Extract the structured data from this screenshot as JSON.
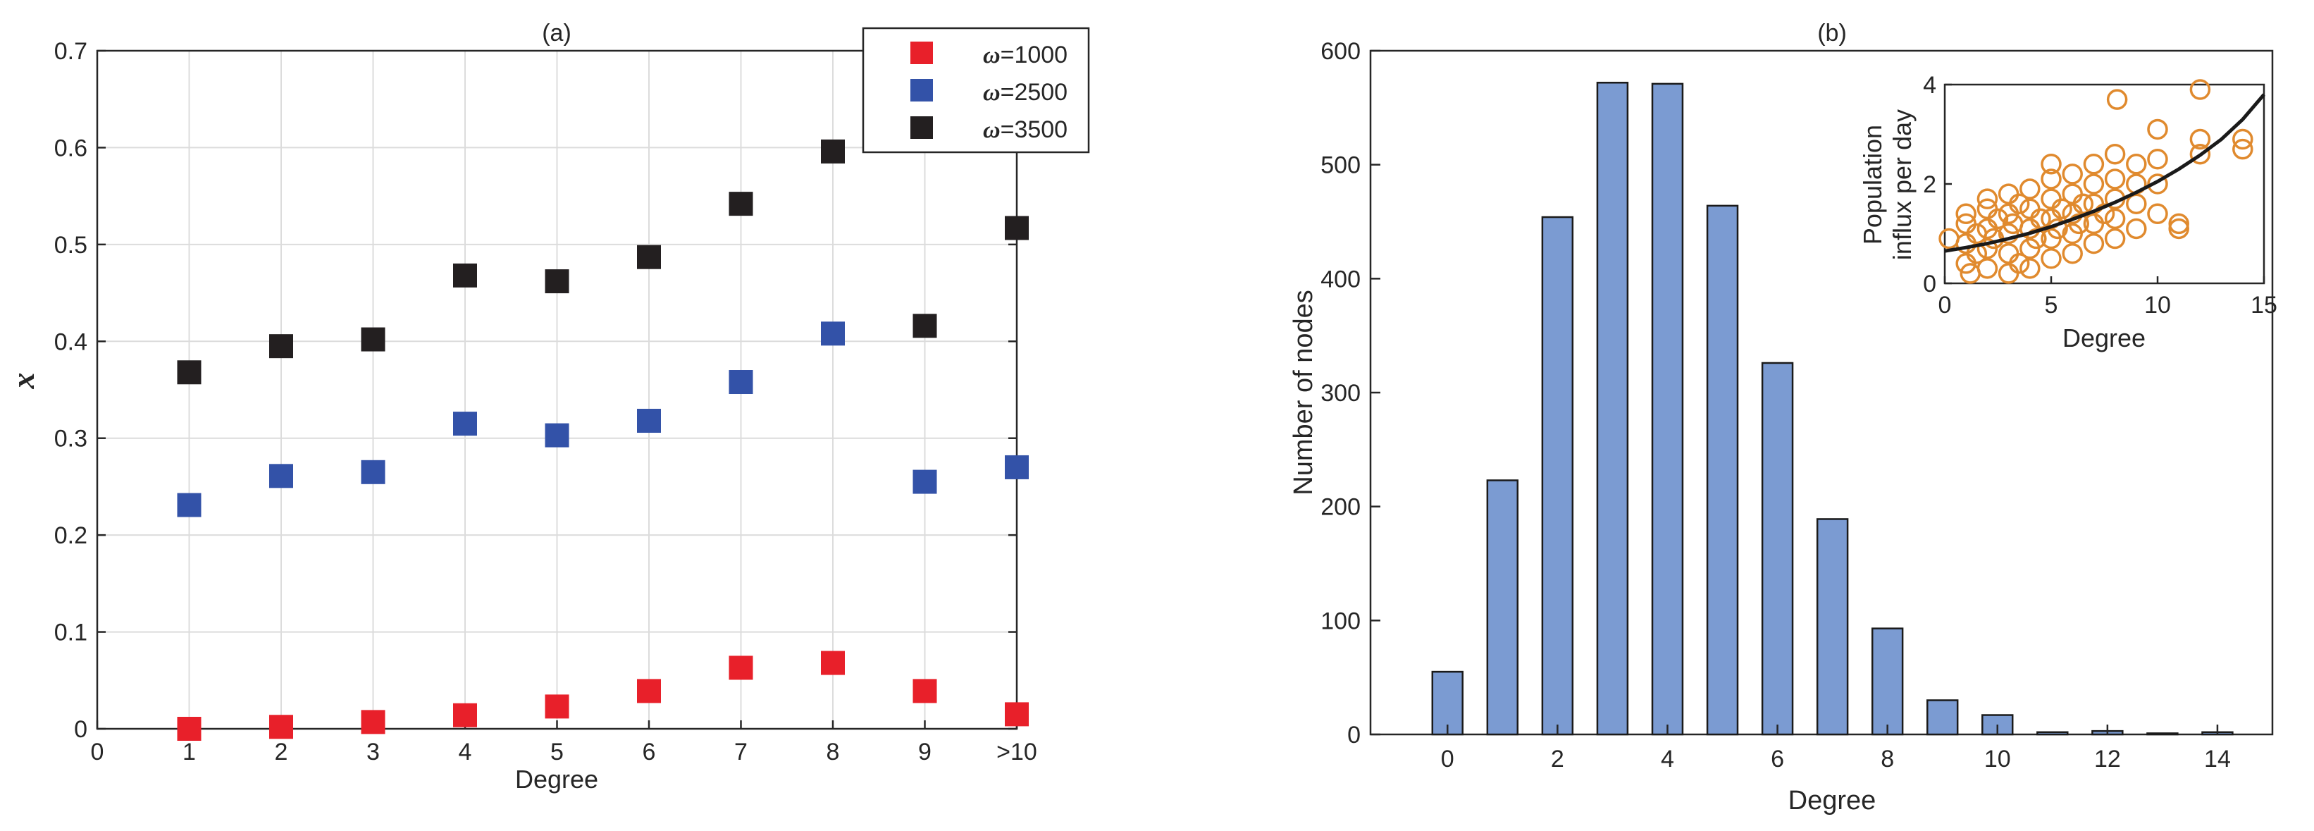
{
  "chart_data": [
    {
      "panel": "(a)",
      "type": "scatter",
      "title": "(a)",
      "xlabel": "Degree",
      "ylabel": "x",
      "x_tick_labels": [
        "0",
        "1",
        "2",
        "3",
        "4",
        "5",
        "6",
        "7",
        "8",
        "9",
        ">10"
      ],
      "xlim": [
        0,
        10
      ],
      "ylim": [
        0,
        0.7
      ],
      "y_ticks": [
        0,
        0.1,
        0.2,
        0.3,
        0.4,
        0.5,
        0.6,
        0.7
      ],
      "y_tick_labels": [
        "0",
        "0.1",
        "0.2",
        "0.3",
        "0.4",
        "0.5",
        "0.6",
        "0.7"
      ],
      "grid": true,
      "legend_position": "top-right",
      "x": [
        1,
        2,
        3,
        4,
        5,
        6,
        7,
        8,
        9,
        10
      ],
      "series": [
        {
          "symbol": "ω",
          "name": "=1000",
          "color": "#e8202a",
          "marker": "square",
          "values": [
            0.0,
            0.002,
            0.007,
            0.014,
            0.023,
            0.039,
            0.063,
            0.068,
            0.039,
            0.015
          ]
        },
        {
          "symbol": "ω",
          "name": "=2500",
          "color": "#3352a8",
          "marker": "square",
          "values": [
            0.231,
            0.261,
            0.265,
            0.315,
            0.303,
            0.318,
            0.358,
            0.408,
            0.255,
            0.27
          ]
        },
        {
          "symbol": "ω",
          "name": "=3500",
          "color": "#231f20",
          "marker": "square",
          "values": [
            0.368,
            0.395,
            0.402,
            0.468,
            0.462,
            0.487,
            0.542,
            0.596,
            0.416,
            0.517
          ]
        }
      ]
    },
    {
      "panel": "(b)",
      "type": "bar",
      "title": "(b)",
      "xlabel": "Degree",
      "ylabel": "Number of nodes",
      "bar_color": "#7b9bd2",
      "categories": [
        0,
        1,
        2,
        3,
        4,
        5,
        6,
        7,
        8,
        9,
        10,
        11,
        12,
        13,
        14
      ],
      "values": [
        55,
        223,
        454,
        572,
        571,
        464,
        326,
        189,
        93,
        30,
        17,
        2,
        3,
        1,
        2
      ],
      "xlim": [
        -1.4,
        15
      ],
      "ylim": [
        0,
        600
      ],
      "x_ticks": [
        0,
        2,
        4,
        6,
        8,
        10,
        12,
        14
      ],
      "x_tick_labels": [
        "0",
        "2",
        "4",
        "6",
        "8",
        "10",
        "12",
        "14"
      ],
      "y_ticks": [
        0,
        100,
        200,
        300,
        400,
        500,
        600
      ],
      "y_tick_labels": [
        "0",
        "100",
        "200",
        "300",
        "400",
        "500",
        "600"
      ],
      "grid": false
    },
    {
      "panel": "(b) inset",
      "type": "scatter",
      "xlabel": "Degree",
      "ylabel_line1": "Population",
      "ylabel_line2": "influx per day",
      "marker_color": "#e08a2e",
      "marker": "open-circle",
      "xlim": [
        0,
        15
      ],
      "ylim": [
        0,
        4
      ],
      "x_ticks": [
        0,
        5,
        10,
        15
      ],
      "x_tick_labels": [
        "0",
        "5",
        "10",
        "15"
      ],
      "y_ticks": [
        0,
        2,
        4
      ],
      "y_tick_labels": [
        "0",
        "2",
        "4"
      ],
      "fit_curve": {
        "color": "#1a1a1a",
        "x": [
          0,
          1,
          2,
          3,
          4,
          5,
          6,
          7,
          8,
          9,
          10,
          11,
          12,
          13,
          14,
          15
        ],
        "y": [
          0.65,
          0.72,
          0.8,
          0.9,
          1.01,
          1.14,
          1.29,
          1.45,
          1.63,
          1.83,
          2.05,
          2.3,
          2.58,
          2.9,
          3.3,
          3.8
        ]
      },
      "points": [
        [
          0.2,
          0.9
        ],
        [
          1,
          0.4
        ],
        [
          1,
          0.8
        ],
        [
          1,
          1.2
        ],
        [
          1,
          1.4
        ],
        [
          1.2,
          0.2
        ],
        [
          1.5,
          1.0
        ],
        [
          1.5,
          0.6
        ],
        [
          2,
          0.3
        ],
        [
          2,
          0.7
        ],
        [
          2,
          1.1
        ],
        [
          2,
          1.5
        ],
        [
          2,
          1.7
        ],
        [
          2.3,
          0.9
        ],
        [
          2.5,
          1.3
        ],
        [
          3,
          0.2
        ],
        [
          3,
          0.6
        ],
        [
          3,
          1.0
        ],
        [
          3,
          1.4
        ],
        [
          3,
          1.8
        ],
        [
          3.2,
          1.2
        ],
        [
          3.5,
          0.4
        ],
        [
          3.5,
          1.6
        ],
        [
          4,
          0.3
        ],
        [
          4,
          0.7
        ],
        [
          4,
          1.1
        ],
        [
          4,
          1.5
        ],
        [
          4,
          1.9
        ],
        [
          4.3,
          0.9
        ],
        [
          4.5,
          1.3
        ],
        [
          5,
          0.5
        ],
        [
          5,
          0.9
        ],
        [
          5,
          1.3
        ],
        [
          5,
          1.7
        ],
        [
          5,
          2.1
        ],
        [
          5,
          2.4
        ],
        [
          5.3,
          1.1
        ],
        [
          5.5,
          1.5
        ],
        [
          6,
          0.6
        ],
        [
          6,
          1.0
        ],
        [
          6,
          1.4
        ],
        [
          6,
          1.8
        ],
        [
          6,
          2.2
        ],
        [
          6.3,
          1.2
        ],
        [
          6.5,
          1.6
        ],
        [
          7,
          0.8
        ],
        [
          7,
          1.2
        ],
        [
          7,
          1.6
        ],
        [
          7,
          2.0
        ],
        [
          7,
          2.4
        ],
        [
          7.5,
          1.4
        ],
        [
          8,
          0.9
        ],
        [
          8,
          1.3
        ],
        [
          8,
          1.7
        ],
        [
          8,
          2.1
        ],
        [
          8,
          2.6
        ],
        [
          8.1,
          3.7
        ],
        [
          9,
          1.1
        ],
        [
          9,
          1.6
        ],
        [
          9,
          2.0
        ],
        [
          9,
          2.4
        ],
        [
          10,
          1.4
        ],
        [
          10,
          2.0
        ],
        [
          10,
          2.5
        ],
        [
          10,
          3.1
        ],
        [
          11,
          1.1
        ],
        [
          11,
          1.2
        ],
        [
          12,
          2.6
        ],
        [
          12,
          2.9
        ],
        [
          12,
          3.9
        ],
        [
          14,
          2.7
        ],
        [
          14,
          2.9
        ]
      ]
    }
  ]
}
